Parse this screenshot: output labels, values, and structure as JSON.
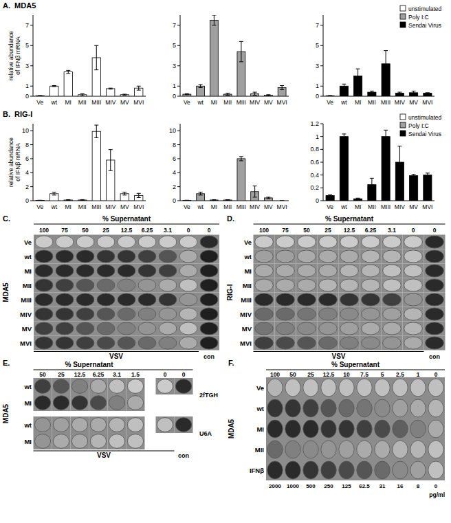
{
  "chart_data": [
    {
      "type": "bar",
      "title": "A.  MDA5",
      "y_label": "relative abundance of IFNβ mRNA",
      "categories": [
        "Ve",
        "wt",
        "MI",
        "MII",
        "MIII",
        "MIV",
        "MV",
        "MVI"
      ],
      "series": [
        {
          "name": "unstimulated",
          "color": "#ffffff",
          "values": [
            0.05,
            1.0,
            2.4,
            0.15,
            3.8,
            0.75,
            0.15,
            0.8
          ],
          "errors": [
            0.02,
            0.05,
            0.15,
            0.1,
            1.2,
            0.05,
            0.05,
            0.2
          ]
        }
      ],
      "ylim": [
        0,
        8
      ],
      "yticks": [
        0,
        1,
        3,
        5,
        7
      ],
      "grid": false
    },
    {
      "type": "bar",
      "categories": [
        "Ve",
        "wt",
        "MI",
        "MII",
        "MIII",
        "MIV",
        "MV",
        "MVI"
      ],
      "series": [
        {
          "name": "Poly I:C",
          "color": "#a0a0a0",
          "values": [
            0.2,
            1.0,
            7.5,
            0.2,
            4.4,
            0.25,
            0.1,
            0.85
          ],
          "errors": [
            0.05,
            0.15,
            0.5,
            0.1,
            1.0,
            0.15,
            0.05,
            0.2
          ]
        }
      ],
      "ylim": [
        0,
        8
      ],
      "yticks": [
        0,
        1,
        3,
        5,
        7
      ],
      "grid": false
    },
    {
      "type": "bar",
      "categories": [
        "Ve",
        "wt",
        "MI",
        "MII",
        "MIII",
        "MIV",
        "MV",
        "MVI"
      ],
      "series": [
        {
          "name": "Sendai Virus",
          "color": "#000000",
          "values": [
            0.05,
            1.0,
            2.0,
            0.4,
            3.2,
            0.3,
            0.35,
            0.3
          ],
          "errors": [
            0.02,
            0.2,
            0.7,
            0.1,
            1.3,
            0.1,
            0.15,
            0.05
          ]
        }
      ],
      "ylim": [
        0,
        8
      ],
      "yticks": [
        0,
        1,
        3,
        5,
        7
      ],
      "grid": false,
      "legend": "top-right"
    },
    {
      "type": "bar",
      "title": "B.  RIG-I",
      "y_label": "relative abundance of IFNβ mRNA",
      "categories": [
        "Ve",
        "wt",
        "MI",
        "MII",
        "MIII",
        "MIV",
        "MV",
        "MVI"
      ],
      "series": [
        {
          "name": "unstimulated",
          "color": "#ffffff",
          "values": [
            0.05,
            1.0,
            0.1,
            0.1,
            9.9,
            5.8,
            1.0,
            0.75
          ],
          "errors": [
            0.02,
            0.2,
            0.05,
            0.05,
            0.9,
            1.5,
            0.2,
            0.3
          ]
        }
      ],
      "ylim": [
        0,
        11
      ],
      "yticks": [
        0,
        2,
        4,
        6,
        8,
        10
      ],
      "grid": false
    },
    {
      "type": "bar",
      "categories": [
        "Ve",
        "wt",
        "MI",
        "MII",
        "MIII",
        "MIV",
        "MV",
        "MVI"
      ],
      "series": [
        {
          "name": "Poly I:C",
          "color": "#a0a0a0",
          "values": [
            0.05,
            1.0,
            0.1,
            0.1,
            6.0,
            1.3,
            0.4,
            0.0
          ],
          "errors": [
            0.02,
            0.2,
            0.05,
            0.05,
            0.3,
            0.8,
            0.1,
            0.02
          ]
        }
      ],
      "ylim": [
        0,
        11
      ],
      "yticks": [
        0,
        2,
        4,
        6,
        8,
        10
      ],
      "grid": false
    },
    {
      "type": "bar",
      "categories": [
        "Ve",
        "wt",
        "MI",
        "MII",
        "MIII",
        "MIV",
        "MV",
        "MVI"
      ],
      "series": [
        {
          "name": "Sendai Virus",
          "color": "#000000",
          "values": [
            0.08,
            1.0,
            0.03,
            0.25,
            1.0,
            0.6,
            0.39,
            0.4
          ],
          "errors": [
            0.01,
            0.04,
            0.01,
            0.1,
            0.1,
            0.25,
            0.02,
            0.03
          ]
        }
      ],
      "ylim": [
        0,
        1.2
      ],
      "yticks": [
        0,
        0.2,
        0.4,
        0.6,
        0.8,
        1,
        1.2
      ],
      "grid": false,
      "legend": "top-right"
    }
  ],
  "plates": [
    {
      "label": "C.",
      "side_label": "MDA5",
      "header": "% Supernatant",
      "columns": [
        100,
        75,
        50,
        25,
        12.5,
        6.25,
        3.1,
        0,
        0
      ],
      "bottom_label": "VSV",
      "control_label": "con",
      "rows": [
        {
          "label": "Ve",
          "stain": [
            0.15,
            0.15,
            0.15,
            0.15,
            0.15,
            0.15,
            0.15,
            0.15,
            0.9
          ]
        },
        {
          "label": "wt",
          "stain": [
            0.9,
            0.9,
            0.9,
            0.85,
            0.85,
            0.8,
            0.7,
            0.3,
            0.95
          ]
        },
        {
          "label": "MI",
          "stain": [
            0.9,
            0.9,
            0.9,
            0.9,
            0.9,
            0.85,
            0.8,
            0.3,
            0.95
          ]
        },
        {
          "label": "MII",
          "stain": [
            0.85,
            0.8,
            0.7,
            0.6,
            0.5,
            0.4,
            0.3,
            0.2,
            0.95
          ]
        },
        {
          "label": "MIII",
          "stain": [
            0.9,
            0.9,
            0.9,
            0.9,
            0.9,
            0.9,
            0.85,
            0.4,
            0.95
          ]
        },
        {
          "label": "MIV",
          "stain": [
            0.85,
            0.85,
            0.8,
            0.7,
            0.6,
            0.5,
            0.4,
            0.25,
            0.95
          ]
        },
        {
          "label": "MV",
          "stain": [
            0.8,
            0.8,
            0.7,
            0.6,
            0.5,
            0.4,
            0.3,
            0.2,
            0.95
          ]
        },
        {
          "label": "MVI",
          "stain": [
            0.85,
            0.85,
            0.8,
            0.75,
            0.7,
            0.6,
            0.5,
            0.3,
            0.95
          ]
        }
      ]
    },
    {
      "label": "D.",
      "side_label": "RIG-I",
      "header": "% Supernatant",
      "columns": [
        100,
        75,
        50,
        25,
        12.5,
        6.25,
        3.1,
        0,
        0
      ],
      "bottom_label": "VSV",
      "control_label": "con",
      "rows": [
        {
          "label": "Ve",
          "stain": [
            0.15,
            0.15,
            0.15,
            0.15,
            0.15,
            0.15,
            0.15,
            0.15,
            0.9
          ]
        },
        {
          "label": "wt",
          "stain": [
            0.35,
            0.35,
            0.3,
            0.3,
            0.3,
            0.25,
            0.25,
            0.2,
            0.9
          ]
        },
        {
          "label": "MI",
          "stain": [
            0.3,
            0.3,
            0.3,
            0.3,
            0.25,
            0.25,
            0.2,
            0.2,
            0.9
          ]
        },
        {
          "label": "MII",
          "stain": [
            0.3,
            0.3,
            0.3,
            0.25,
            0.25,
            0.25,
            0.2,
            0.2,
            0.9
          ]
        },
        {
          "label": "MIII",
          "stain": [
            0.9,
            0.9,
            0.9,
            0.9,
            0.85,
            0.85,
            0.8,
            0.4,
            0.9
          ]
        },
        {
          "label": "MIV",
          "stain": [
            0.6,
            0.6,
            0.55,
            0.5,
            0.45,
            0.4,
            0.35,
            0.25,
            0.9
          ]
        },
        {
          "label": "MV",
          "stain": [
            0.55,
            0.5,
            0.45,
            0.4,
            0.35,
            0.3,
            0.3,
            0.25,
            0.9
          ]
        },
        {
          "label": "MVI",
          "stain": [
            0.8,
            0.75,
            0.7,
            0.6,
            0.5,
            0.45,
            0.4,
            0.3,
            0.9
          ]
        }
      ]
    },
    {
      "label": "E.",
      "side_label": "MDA5",
      "header": "% Supernatant",
      "columns": [
        50,
        25,
        12.5,
        6.25,
        3.1,
        1.5,
        0,
        0
      ],
      "bottom_label": "VSV",
      "control_label": "con",
      "rows": [
        {
          "label": "wt",
          "group": "2fTGH",
          "stain": [
            0.8,
            0.7,
            0.5,
            0.3,
            0.2,
            0.15,
            0.15,
            0.9
          ]
        },
        {
          "label": "MI",
          "group": "2fTGH",
          "stain": [
            0.9,
            0.9,
            0.85,
            0.75,
            0.5,
            0.3,
            null,
            null
          ]
        },
        {
          "label": "wt",
          "group": "U6A",
          "stain": [
            0.4,
            0.35,
            0.3,
            0.3,
            0.25,
            0.2,
            0.2,
            0.9
          ]
        },
        {
          "label": "MI",
          "group": "U6A",
          "stain": [
            0.4,
            0.3,
            0.3,
            0.25,
            0.2,
            0.2,
            null,
            null
          ]
        }
      ]
    },
    {
      "label": "F.",
      "side_label": "MDA5",
      "header": "% Supernatant",
      "columns": [
        100,
        50,
        25,
        12.5,
        10,
        7.5,
        5,
        2.5,
        1,
        0
      ],
      "rows": [
        {
          "label": "Ve",
          "stain": [
            0.25,
            0.2,
            0.2,
            0.2,
            0.2,
            0.2,
            0.2,
            0.2,
            0.2,
            0.2
          ]
        },
        {
          "label": "wt",
          "stain": [
            0.85,
            0.85,
            0.8,
            0.7,
            0.6,
            0.55,
            0.45,
            0.35,
            0.3,
            0.25
          ]
        },
        {
          "label": "MI",
          "stain": [
            0.9,
            0.9,
            0.9,
            0.85,
            0.85,
            0.8,
            0.75,
            0.65,
            0.5,
            0.3
          ]
        },
        {
          "label": "MII",
          "stain": [
            0.6,
            0.5,
            0.45,
            0.4,
            0.35,
            0.3,
            0.3,
            0.25,
            0.25,
            0.2
          ]
        },
        {
          "label": "IFNβ",
          "stain": [
            0.9,
            0.9,
            0.85,
            0.8,
            0.75,
            0.7,
            0.6,
            0.45,
            0.35,
            0.2
          ]
        }
      ],
      "doses": {
        "values": [
          2000,
          1000,
          500,
          250,
          125,
          62.5,
          31,
          16,
          8,
          0
        ],
        "unit": "pg/ml"
      }
    }
  ]
}
